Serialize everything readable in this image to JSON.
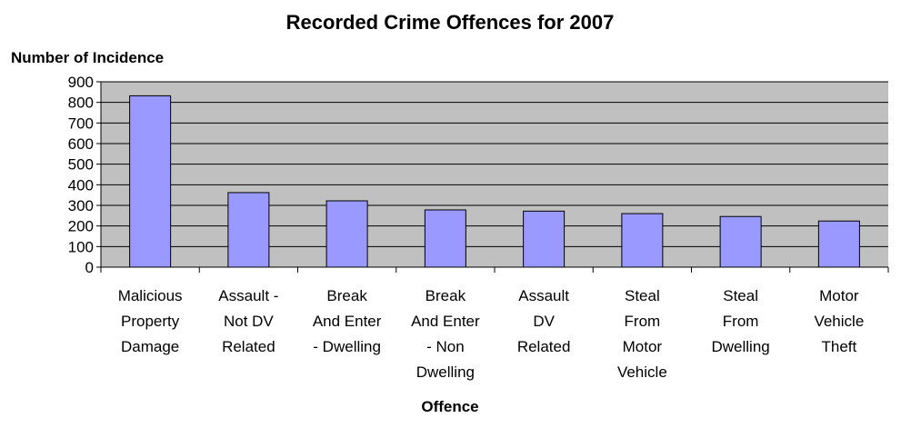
{
  "chart_data": {
    "type": "bar",
    "title": "Recorded Crime Offences for 2007",
    "ylabel": "Number of Incidence",
    "xlabel": "Offence",
    "ylim": [
      0,
      900
    ],
    "yticks": [
      0,
      100,
      200,
      300,
      400,
      500,
      600,
      700,
      800,
      900
    ],
    "grid": true,
    "legend": "none",
    "categories": [
      [
        "Malicious",
        "Property",
        "Damage"
      ],
      [
        "Assault -",
        "Not DV",
        "Related"
      ],
      [
        "Break",
        "And Enter",
        "- Dwelling"
      ],
      [
        "Break",
        "And Enter",
        "- Non",
        "Dwelling"
      ],
      [
        "Assault",
        "DV",
        "Related"
      ],
      [
        "Steal",
        "From",
        "Motor",
        "Vehicle"
      ],
      [
        "Steal",
        "From",
        "Dwelling"
      ],
      [
        "Motor",
        "Vehicle",
        "Theft"
      ]
    ],
    "values": [
      832,
      362,
      322,
      278,
      272,
      260,
      246,
      224
    ],
    "colors": {
      "plot_background": "#c0c0c0",
      "bar_fill": "#9999ff",
      "bar_stroke": "#000000",
      "gridline": "#000000"
    }
  }
}
